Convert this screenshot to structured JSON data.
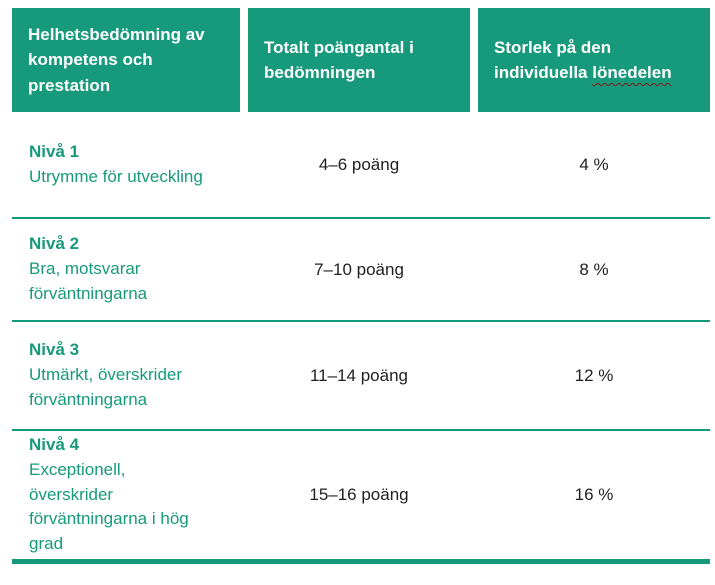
{
  "colors": {
    "header_bg": "#17997B",
    "accent_green_text": "#17997B",
    "separator_green": "#17997B",
    "body_text": "#1f1f1f",
    "spellcheck_underline_red": "#7e1d1d"
  },
  "table": {
    "headers": [
      {
        "lines": "Helhetsbedömning av\nkompetens och\nprestation"
      },
      {
        "lines": "Totalt poängantal i\nbedömningen"
      },
      {
        "line1": "Storlek på den",
        "line2_prefix": "individuella",
        "underlined": "lönedelen"
      }
    ],
    "rows": [
      {
        "level": "Nivå 1",
        "description": "Utrymme för utveckling",
        "points": "4–6 poäng",
        "share": "4 %"
      },
      {
        "level": "Nivå 2",
        "description": "Bra, motsvarar\nförväntningarna",
        "points": "7–10 poäng",
        "share": "8 %"
      },
      {
        "level": "Nivå 3",
        "description": "Utmärkt, överskrider\nförväntningarna",
        "points": "11–14 poäng",
        "share": "12 %"
      },
      {
        "level": "Nivå 4",
        "description": "Exceptionell,\növerskrider\nförväntningarna i hög\ngrad",
        "points": "15–16 poäng",
        "share": "16 %"
      }
    ]
  }
}
